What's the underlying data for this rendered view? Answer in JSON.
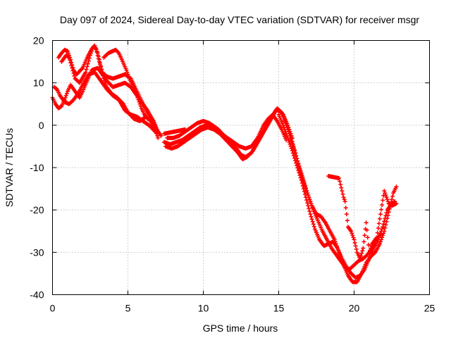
{
  "chart_data": {
    "type": "scatter",
    "title": "Day 097 of 2024, Sidereal Day-to-day VTEC variation (SDTVAR) for receiver msgr",
    "xlabel": "GPS time / hours",
    "ylabel": "SDTVAR / TECUs",
    "xlim": [
      0,
      25
    ],
    "ylim": [
      -40,
      20
    ],
    "xticks": [
      "0",
      "5",
      "10",
      "15",
      "20",
      "25"
    ],
    "yticks": [
      "20",
      "10",
      "0",
      "-10",
      "-20",
      "-30",
      "-40"
    ],
    "grid": true,
    "marker": "+",
    "color": "#ff0000",
    "series": [
      {
        "points": [
          [
            0.0,
            6.5
          ],
          [
            0.2,
            5.0
          ],
          [
            0.4,
            4.0
          ],
          [
            0.6,
            4.5
          ],
          [
            0.8,
            6.0
          ],
          [
            1.0,
            8.0
          ],
          [
            1.2,
            9.5
          ],
          [
            1.5,
            8.0
          ],
          [
            1.8,
            6.5
          ],
          [
            2.0,
            8.0
          ],
          [
            2.3,
            10.5
          ],
          [
            2.6,
            13.0
          ],
          [
            3.0,
            13.5
          ],
          [
            3.3,
            12.0
          ],
          [
            3.6,
            10.5
          ],
          [
            4.0,
            9.0
          ],
          [
            4.4,
            9.5
          ],
          [
            4.8,
            10.0
          ],
          [
            5.2,
            9.0
          ],
          [
            5.6,
            7.0
          ],
          [
            6.0,
            5.0
          ],
          [
            6.3,
            3.5
          ],
          [
            6.6,
            1.5
          ],
          [
            6.9,
            -1.0
          ],
          [
            7.2,
            -2.5
          ]
        ]
      },
      {
        "points": [
          [
            0.1,
            9.0
          ],
          [
            0.3,
            8.5
          ],
          [
            0.5,
            7.0
          ],
          [
            0.8,
            5.5
          ],
          [
            1.1,
            5.0
          ],
          [
            1.4,
            6.0
          ],
          [
            1.7,
            7.5
          ],
          [
            2.0,
            9.5
          ],
          [
            2.4,
            12.0
          ],
          [
            2.8,
            12.5
          ],
          [
            3.2,
            10.5
          ],
          [
            3.6,
            8.5
          ],
          [
            4.0,
            7.0
          ],
          [
            4.4,
            6.0
          ],
          [
            4.8,
            3.5
          ],
          [
            5.2,
            2.5
          ],
          [
            5.6,
            2.0
          ],
          [
            6.0,
            1.0
          ],
          [
            6.4,
            0.0
          ],
          [
            6.8,
            -1.5
          ]
        ]
      },
      {
        "points": [
          [
            0.4,
            16.0
          ],
          [
            0.6,
            17.0
          ],
          [
            0.8,
            17.8
          ],
          [
            1.0,
            17.5
          ],
          [
            1.2,
            15.5
          ],
          [
            1.4,
            13.0
          ],
          [
            1.6,
            12.0
          ],
          [
            2.0,
            13.5
          ],
          [
            2.3,
            16.0
          ],
          [
            2.6,
            18.0
          ],
          [
            2.8,
            18.8
          ],
          [
            3.0,
            17.0
          ],
          [
            3.2,
            14.0
          ],
          [
            3.4,
            11.0
          ],
          [
            3.6,
            9.0
          ],
          [
            3.9,
            7.5
          ],
          [
            4.3,
            6.5
          ],
          [
            4.7,
            5.0
          ],
          [
            5.0,
            3.0
          ],
          [
            5.4,
            1.5
          ],
          [
            5.8,
            1.0
          ],
          [
            6.2,
            2.0
          ],
          [
            6.5,
            1.0
          ],
          [
            6.8,
            -1.0
          ],
          [
            7.0,
            -3.0
          ]
        ]
      },
      {
        "points": [
          [
            0.6,
            15.0
          ],
          [
            0.9,
            16.5
          ],
          [
            1.1,
            16.0
          ],
          [
            1.3,
            13.5
          ],
          [
            1.5,
            11.0
          ],
          [
            1.8,
            10.0
          ],
          [
            2.2,
            12.5
          ],
          [
            2.5,
            16.5
          ],
          [
            2.7,
            18.5
          ],
          [
            2.9,
            18.0
          ],
          [
            3.1,
            15.0
          ],
          [
            3.3,
            12.5
          ],
          [
            3.6,
            11.5
          ],
          [
            4.0,
            11.0
          ],
          [
            4.4,
            11.5
          ],
          [
            4.8,
            12.0
          ],
          [
            5.2,
            11.0
          ],
          [
            5.6,
            8.0
          ],
          [
            6.0,
            5.0
          ],
          [
            6.3,
            3.0
          ],
          [
            6.7,
            1.0
          ],
          [
            7.0,
            -1.5
          ]
        ]
      },
      {
        "points": [
          [
            3.4,
            16.0
          ],
          [
            3.7,
            17.0
          ],
          [
            4.0,
            17.5
          ],
          [
            4.2,
            17.8
          ],
          [
            4.4,
            17.0
          ],
          [
            4.6,
            15.5
          ],
          [
            4.9,
            13.0
          ],
          [
            5.1,
            11.0
          ],
          [
            5.3,
            9.5
          ],
          [
            5.6,
            7.0
          ],
          [
            5.9,
            4.0
          ],
          [
            6.1,
            2.5
          ],
          [
            6.3,
            1.5
          ]
        ]
      },
      {
        "points": [
          [
            7.4,
            -4.0
          ],
          [
            7.8,
            -4.5
          ],
          [
            8.2,
            -4.0
          ],
          [
            8.6,
            -3.5
          ],
          [
            9.0,
            -2.5
          ],
          [
            9.4,
            -1.5
          ],
          [
            9.8,
            -0.5
          ],
          [
            10.2,
            0.0
          ],
          [
            10.6,
            0.0
          ],
          [
            11.0,
            -1.0
          ],
          [
            11.4,
            -2.5
          ],
          [
            11.8,
            -4.0
          ],
          [
            12.2,
            -5.5
          ],
          [
            12.5,
            -7.0
          ],
          [
            12.8,
            -7.5
          ],
          [
            13.2,
            -6.5
          ],
          [
            13.6,
            -4.0
          ],
          [
            14.0,
            -1.5
          ],
          [
            14.4,
            1.0
          ],
          [
            14.8,
            3.5
          ],
          [
            15.0,
            3.5
          ],
          [
            15.3,
            2.5
          ],
          [
            15.6,
            0.0
          ],
          [
            15.9,
            -3.0
          ]
        ]
      },
      {
        "points": [
          [
            7.5,
            -5.0
          ],
          [
            7.9,
            -5.5
          ],
          [
            8.3,
            -5.0
          ],
          [
            8.7,
            -4.0
          ],
          [
            9.1,
            -3.0
          ],
          [
            9.5,
            -2.0
          ],
          [
            9.9,
            -1.0
          ],
          [
            10.3,
            -0.5
          ],
          [
            10.7,
            -1.0
          ],
          [
            11.1,
            -2.0
          ],
          [
            11.5,
            -3.5
          ],
          [
            11.9,
            -5.0
          ],
          [
            12.3,
            -6.5
          ],
          [
            12.6,
            -8.0
          ],
          [
            12.9,
            -7.5
          ],
          [
            13.3,
            -6.0
          ],
          [
            13.7,
            -3.5
          ],
          [
            14.1,
            -1.0
          ],
          [
            14.5,
            1.5
          ],
          [
            14.9,
            4.0
          ],
          [
            15.2,
            3.0
          ],
          [
            15.5,
            0.5
          ],
          [
            15.8,
            -2.5
          ]
        ]
      },
      {
        "points": [
          [
            7.6,
            -3.0
          ],
          [
            8.0,
            -3.0
          ],
          [
            8.4,
            -2.5
          ],
          [
            8.8,
            -1.5
          ],
          [
            9.2,
            -0.5
          ],
          [
            9.6,
            0.5
          ],
          [
            10.0,
            1.0
          ],
          [
            10.4,
            0.5
          ],
          [
            10.8,
            -0.5
          ],
          [
            11.2,
            -2.0
          ],
          [
            11.6,
            -3.0
          ],
          [
            12.0,
            -4.0
          ],
          [
            12.4,
            -5.0
          ],
          [
            12.8,
            -5.5
          ],
          [
            13.2,
            -5.0
          ],
          [
            13.6,
            -3.0
          ],
          [
            14.0,
            0.0
          ],
          [
            14.3,
            1.5
          ],
          [
            14.6,
            2.5
          ],
          [
            14.9,
            1.0
          ],
          [
            15.2,
            -1.0
          ],
          [
            15.5,
            -3.5
          ]
        ]
      },
      {
        "points": [
          [
            15.0,
            2.5
          ],
          [
            15.3,
            0.0
          ],
          [
            15.6,
            -3.0
          ],
          [
            15.9,
            -6.0
          ],
          [
            16.2,
            -9.5
          ],
          [
            16.5,
            -13.0
          ],
          [
            16.8,
            -17.0
          ],
          [
            17.1,
            -21.0
          ],
          [
            17.4,
            -24.5
          ],
          [
            17.7,
            -27.0
          ],
          [
            18.0,
            -28.5
          ],
          [
            18.3,
            -28.0
          ],
          [
            18.6,
            -27.5
          ],
          [
            18.9,
            -29.0
          ],
          [
            19.2,
            -31.5
          ],
          [
            19.5,
            -33.5
          ],
          [
            19.8,
            -35.0
          ],
          [
            20.1,
            -36.0
          ],
          [
            20.4,
            -35.5
          ],
          [
            20.7,
            -34.0
          ],
          [
            21.0,
            -31.5
          ],
          [
            21.3,
            -29.0
          ],
          [
            21.6,
            -27.0
          ],
          [
            21.9,
            -24.0
          ],
          [
            22.2,
            -20.0
          ],
          [
            22.5,
            -18.5
          ],
          [
            22.7,
            -18.0
          ]
        ]
      },
      {
        "points": [
          [
            15.4,
            1.0
          ],
          [
            15.7,
            -2.0
          ],
          [
            16.0,
            -5.5
          ],
          [
            16.3,
            -9.0
          ],
          [
            16.6,
            -12.5
          ],
          [
            16.9,
            -16.0
          ],
          [
            17.2,
            -19.0
          ],
          [
            17.5,
            -21.0
          ],
          [
            17.8,
            -21.5
          ],
          [
            18.1,
            -23.0
          ],
          [
            18.4,
            -25.0
          ],
          [
            18.7,
            -27.0
          ],
          [
            19.0,
            -30.0
          ],
          [
            19.3,
            -33.0
          ],
          [
            19.6,
            -35.5
          ],
          [
            19.9,
            -37.0
          ],
          [
            20.2,
            -37.0
          ],
          [
            20.5,
            -35.0
          ],
          [
            20.8,
            -32.5
          ],
          [
            21.1,
            -31.0
          ],
          [
            21.4,
            -30.0
          ],
          [
            21.7,
            -28.0
          ],
          [
            22.0,
            -25.0
          ],
          [
            22.3,
            -20.5
          ],
          [
            22.6,
            -16.0
          ],
          [
            22.8,
            -14.5
          ]
        ]
      },
      {
        "points": [
          [
            15.8,
            -2.5
          ],
          [
            16.1,
            -6.5
          ],
          [
            16.4,
            -10.5
          ],
          [
            16.7,
            -14.0
          ],
          [
            17.0,
            -17.0
          ],
          [
            17.3,
            -20.0
          ],
          [
            17.6,
            -22.5
          ],
          [
            17.9,
            -25.0
          ],
          [
            18.2,
            -27.0
          ],
          [
            18.5,
            -29.0
          ],
          [
            18.8,
            -30.5
          ],
          [
            19.1,
            -32.0
          ],
          [
            19.4,
            -33.5
          ],
          [
            19.7,
            -34.0
          ],
          [
            20.0,
            -33.0
          ],
          [
            20.3,
            -32.0
          ],
          [
            20.6,
            -31.5
          ],
          [
            20.9,
            -30.5
          ],
          [
            21.2,
            -29.0
          ],
          [
            21.5,
            -27.0
          ],
          [
            21.8,
            -25.5
          ]
        ]
      },
      {
        "points": [
          [
            18.3,
            -12.0
          ],
          [
            19.0,
            -12.5
          ],
          [
            19.1,
            -14.0
          ],
          [
            19.2,
            -15.5
          ],
          [
            19.3,
            -17.0
          ],
          [
            19.4,
            -18.0
          ],
          [
            19.5,
            -21.0
          ],
          [
            19.6,
            -24.0
          ],
          [
            19.8,
            -25.0
          ],
          [
            20.0,
            -27.0
          ],
          [
            20.2,
            -30.0
          ],
          [
            20.4,
            -31.5
          ],
          [
            20.6,
            -29.0
          ],
          [
            20.7,
            -26.0
          ],
          [
            20.8,
            -23.0
          ],
          [
            21.0,
            -30.0
          ],
          [
            21.2,
            -28.0
          ],
          [
            21.5,
            -26.5
          ],
          [
            22.0,
            -15.5
          ],
          [
            22.3,
            -18.5
          ],
          [
            22.5,
            -19.0
          ],
          [
            22.8,
            -18.5
          ],
          [
            7.4,
            -2.0
          ],
          [
            8.8,
            -1.0
          ]
        ]
      }
    ]
  }
}
